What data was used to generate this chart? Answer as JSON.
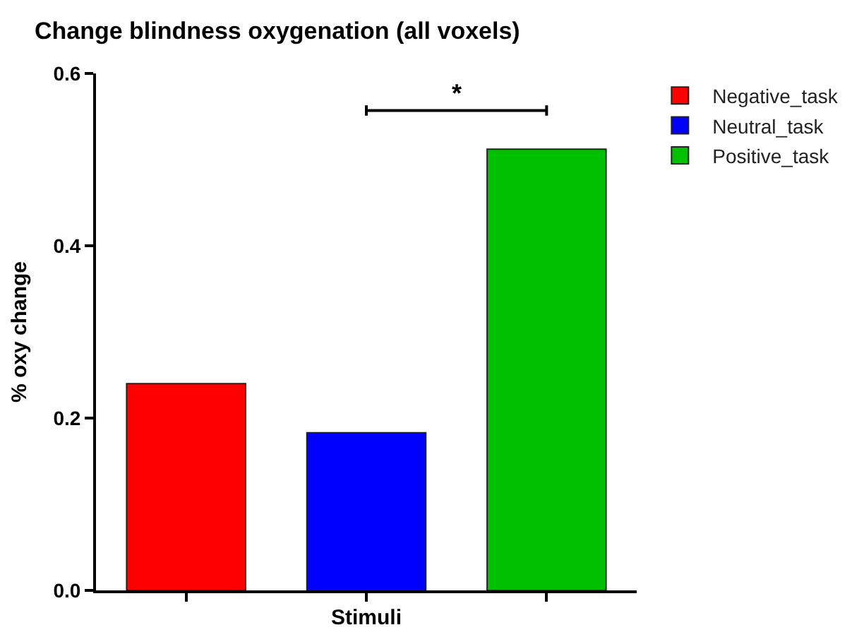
{
  "chart_data": {
    "type": "bar",
    "title": "Change blindness oxygenation (all voxels)",
    "xlabel": "Stimuli",
    "ylabel": "% oxy change",
    "categories": [
      null,
      null,
      null
    ],
    "series": [
      {
        "name": "Negative_task",
        "color": "#ff0000",
        "values": [
          0.24,
          null,
          null
        ]
      },
      {
        "name": "Neutral_task",
        "color": "#0000ff",
        "values": [
          null,
          0.183,
          null
        ]
      },
      {
        "name": "Positive_task",
        "color": "#00c000",
        "values": [
          null,
          null,
          0.512
        ]
      }
    ],
    "ylim": [
      0,
      0.6
    ],
    "yticks": [
      {
        "value": 0,
        "label": "0.0"
      },
      {
        "value": 0.2,
        "label": "0.2"
      },
      {
        "value": 0.4,
        "label": "0.4"
      },
      {
        "value": 0.6,
        "label": "0.6"
      }
    ],
    "annotations": [
      "*"
    ],
    "legend": "top right"
  }
}
